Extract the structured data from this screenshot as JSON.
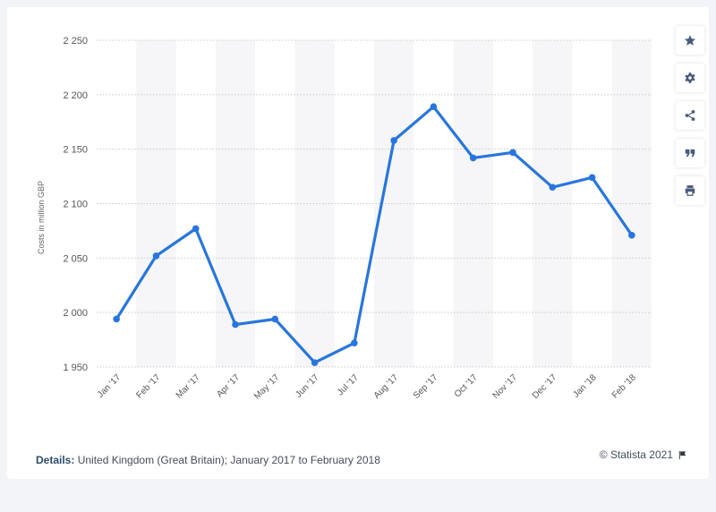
{
  "chart_data": {
    "type": "line",
    "categories": [
      "Jan '17",
      "Feb '17",
      "Mar '17",
      "Apr '17",
      "May '17",
      "Jun '17",
      "Jul '17",
      "Aug '17",
      "Sep '17",
      "Oct '17",
      "Nov '17",
      "Dec '17",
      "Jan '18",
      "Feb '18"
    ],
    "values": [
      1994,
      2052,
      2077,
      1989,
      1994,
      1954,
      1972,
      2158,
      2189,
      2142,
      2147,
      2115,
      2124,
      2071
    ],
    "ylabel": "Costs in million GBP",
    "ylim": [
      1950,
      2250
    ],
    "yticks": [
      1950,
      2000,
      2050,
      2100,
      2150,
      2200,
      2250
    ],
    "ytick_labels": [
      "1 950",
      "2 000",
      "2 050",
      "2 100",
      "2 150",
      "2 200",
      "2 250"
    ],
    "grid": true,
    "line_color": "#2876dd"
  },
  "footer": {
    "details_label": "Details:",
    "details_text": " United Kingdom (Great Britain); January 2017 to February 2018",
    "credit": "© Statista 2021"
  },
  "toolbar": {
    "buttons": [
      "star-icon",
      "gear-icon",
      "share-icon",
      "quote-icon",
      "print-icon"
    ]
  }
}
